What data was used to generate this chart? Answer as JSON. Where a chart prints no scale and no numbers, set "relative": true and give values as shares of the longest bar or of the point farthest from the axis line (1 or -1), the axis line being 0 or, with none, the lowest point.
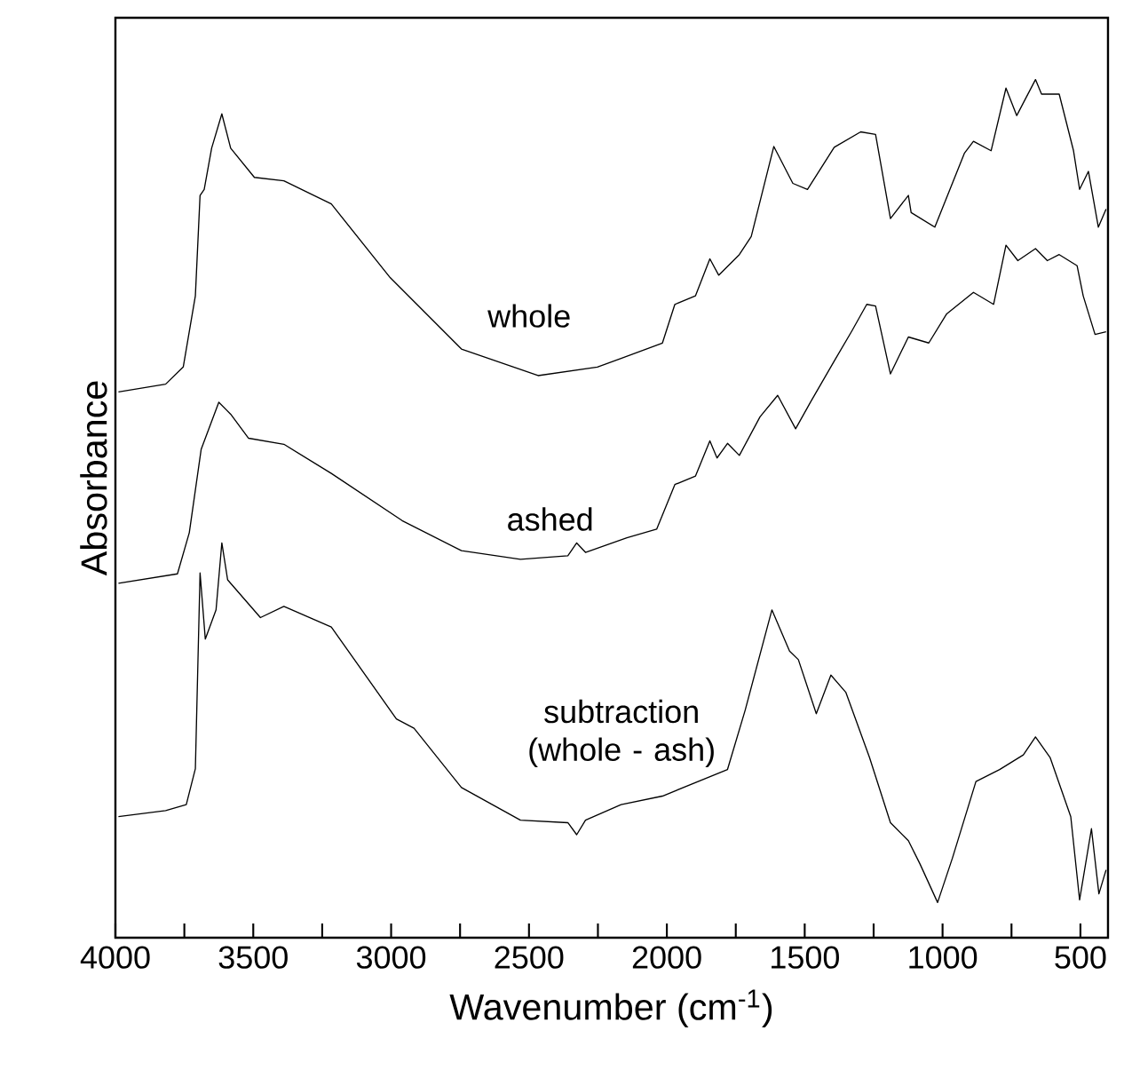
{
  "chart_data": {
    "type": "line",
    "relative": true,
    "xlabel": "Wavenumber (cm$^{-1}$)",
    "ylabel": "Absorbance",
    "xlim": [
      4000,
      400
    ],
    "xticks": [
      4000,
      {
        "value": 3750,
        "label": null
      },
      3500,
      {
        "value": 3250,
        "label": null
      },
      3000,
      {
        "value": 2750,
        "label": null
      },
      2500,
      {
        "value": 2250,
        "label": null
      },
      2000,
      {
        "value": 1750,
        "label": null
      },
      1500,
      {
        "value": 1250,
        "label": null
      },
      1000,
      {
        "value": 750,
        "label": null
      },
      500
    ],
    "tick_labels": "x",
    "marker": "none",
    "line_style": "solid",
    "series": [
      {
        "name": "whole",
        "color": "#000000",
        "x": [
          3989,
          3818,
          3754,
          3710,
          3693,
          3678,
          3651,
          3614,
          3582,
          3496,
          3389,
          3217,
          3003,
          2745,
          2467,
          2252,
          2166,
          2016,
          1971,
          1896,
          1844,
          1812,
          1737,
          1694,
          1612,
          1543,
          1490,
          1393,
          1297,
          1243,
          1189,
          1124,
          1114,
          1028,
          921,
          888,
          824,
          770,
          731,
          663,
          641,
          577,
          525,
          503,
          471,
          435,
          407
        ],
        "values": [
          0.636,
          0.645,
          0.665,
          0.748,
          0.865,
          0.872,
          0.92,
          0.96,
          0.92,
          0.886,
          0.882,
          0.855,
          0.769,
          0.686,
          0.655,
          0.665,
          0.675,
          0.693,
          0.738,
          0.748,
          0.791,
          0.772,
          0.796,
          0.817,
          0.922,
          0.879,
          0.872,
          0.921,
          0.939,
          0.936,
          0.838,
          0.865,
          0.845,
          0.828,
          0.914,
          0.928,
          0.917,
          0.99,
          0.958,
          1.0,
          0.983,
          0.983,
          0.917,
          0.872,
          0.893,
          0.828,
          0.849
        ]
      },
      {
        "name": "ashed",
        "color": "#000000",
        "x": [
          3989,
          3775,
          3732,
          3689,
          3625,
          3582,
          3517,
          3389,
          3217,
          2960,
          2745,
          2531,
          2359,
          2327,
          2295,
          2145,
          2037,
          1971,
          1896,
          1844,
          1818,
          1780,
          1737,
          1662,
          1598,
          1533,
          1479,
          1393,
          1329,
          1275,
          1243,
          1189,
          1124,
          1050,
          985,
          888,
          815,
          770,
          727,
          663,
          620,
          577,
          512,
          490,
          447,
          407
        ],
        "values": [
          0.413,
          0.424,
          0.472,
          0.569,
          0.624,
          0.61,
          0.582,
          0.575,
          0.541,
          0.486,
          0.451,
          0.441,
          0.445,
          0.46,
          0.449,
          0.466,
          0.476,
          0.528,
          0.538,
          0.579,
          0.559,
          0.576,
          0.562,
          0.607,
          0.632,
          0.593,
          0.624,
          0.672,
          0.707,
          0.738,
          0.736,
          0.657,
          0.7,
          0.693,
          0.727,
          0.752,
          0.738,
          0.807,
          0.789,
          0.803,
          0.789,
          0.796,
          0.783,
          0.748,
          0.703,
          0.706
        ]
      },
      {
        "name": "subtraction (whole - ash)",
        "color": "#000000",
        "x": [
          3989,
          3818,
          3743,
          3710,
          3693,
          3674,
          3635,
          3614,
          3593,
          3474,
          3389,
          3217,
          2981,
          2917,
          2745,
          2531,
          2359,
          2327,
          2295,
          2166,
          2016,
          1780,
          1716,
          1619,
          1555,
          1523,
          1458,
          1405,
          1351,
          1265,
          1189,
          1124,
          1082,
          1018,
          964,
          879,
          793,
          707,
          663,
          610,
          535,
          503,
          460,
          433,
          407
        ],
        "values": [
          0.141,
          0.148,
          0.155,
          0.197,
          0.425,
          0.348,
          0.382,
          0.46,
          0.417,
          0.373,
          0.386,
          0.362,
          0.255,
          0.244,
          0.175,
          0.137,
          0.134,
          0.12,
          0.137,
          0.155,
          0.165,
          0.196,
          0.265,
          0.382,
          0.334,
          0.324,
          0.261,
          0.306,
          0.286,
          0.21,
          0.134,
          0.113,
          0.086,
          0.041,
          0.093,
          0.182,
          0.196,
          0.213,
          0.234,
          0.21,
          0.141,
          0.044,
          0.127,
          0.051,
          0.079
        ]
      }
    ]
  }
}
